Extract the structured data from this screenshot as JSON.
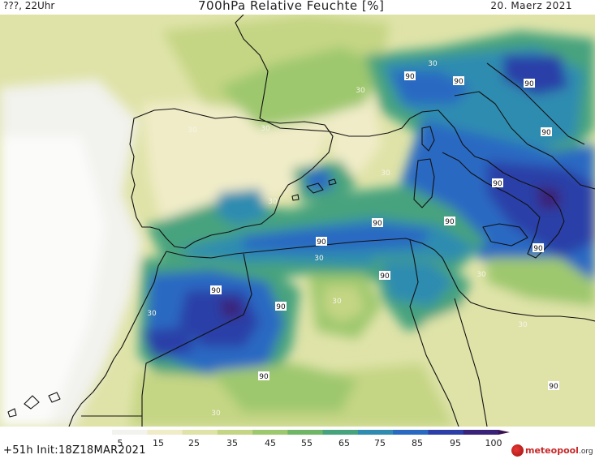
{
  "header": {
    "left": "???, 22Uhr",
    "title": "700hPa Relative Feuchte [%]",
    "date": "20. Maerz 2021"
  },
  "footer": {
    "run_info": "+51h Init:18Z18MAR2021",
    "logo_name": "meteopool",
    "logo_ext": ".org"
  },
  "colorbar": {
    "ticks": [
      "5",
      "15",
      "25",
      "35",
      "45",
      "55",
      "65",
      "75",
      "85",
      "95",
      "100"
    ],
    "colors": [
      "#f2f2ee",
      "#f0ecc8",
      "#dfe3a8",
      "#c4d584",
      "#9ec86e",
      "#6fb666",
      "#47a37e",
      "#2f8cb0",
      "#2a69c2",
      "#2c3fa8",
      "#3a2278",
      "#3a1050"
    ]
  },
  "map": {
    "contour_labels": [
      {
        "text": "90"
      },
      {
        "text": "90"
      },
      {
        "text": "90"
      },
      {
        "text": "90"
      },
      {
        "text": "90"
      },
      {
        "text": "30"
      },
      {
        "text": "30"
      },
      {
        "text": "30"
      },
      {
        "text": "30"
      },
      {
        "text": "30"
      },
      {
        "text": "90"
      },
      {
        "text": "90"
      },
      {
        "text": "90"
      },
      {
        "text": "90"
      },
      {
        "text": "90"
      },
      {
        "text": "30"
      },
      {
        "text": "90"
      },
      {
        "text": "30"
      },
      {
        "text": "90"
      },
      {
        "text": "30"
      },
      {
        "text": "90"
      },
      {
        "text": "30"
      },
      {
        "text": "30"
      },
      {
        "text": "90"
      },
      {
        "text": "30"
      },
      {
        "text": "30"
      }
    ]
  }
}
